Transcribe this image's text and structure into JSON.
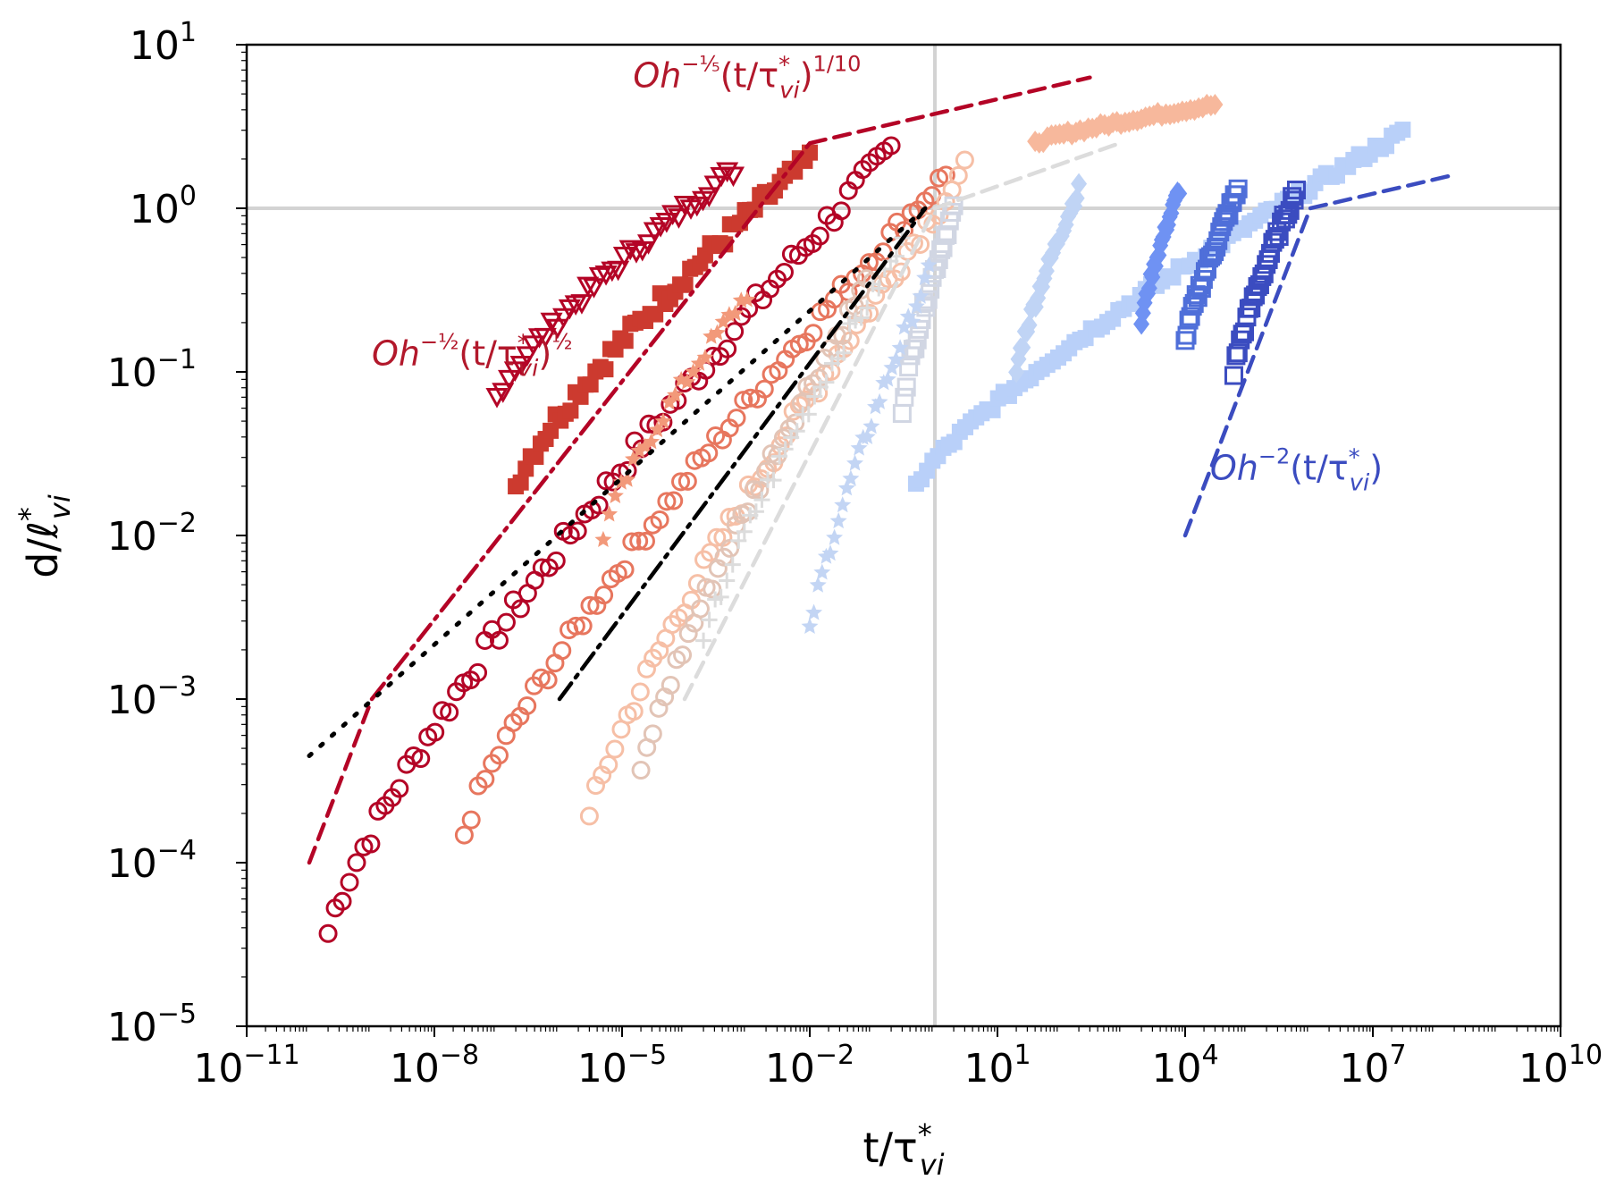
{
  "chart_data": {
    "type": "scatter",
    "xscale": "log",
    "yscale": "log",
    "xlim": [
      1e-11,
      10000000000.0
    ],
    "ylim": [
      1e-05,
      10
    ],
    "x_ticks": [
      {
        "base": "10",
        "exp": "−11",
        "value": 1e-11
      },
      {
        "base": "10",
        "exp": "−8",
        "value": 1e-08
      },
      {
        "base": "10",
        "exp": "−5",
        "value": 1e-05
      },
      {
        "base": "10",
        "exp": "−2",
        "value": 0.01
      },
      {
        "base": "10",
        "exp": "1",
        "value": 10
      },
      {
        "base": "10",
        "exp": "4",
        "value": 10000.0
      },
      {
        "base": "10",
        "exp": "7",
        "value": 10000000.0
      },
      {
        "base": "10",
        "exp": "10",
        "value": 10000000000.0
      }
    ],
    "y_ticks": [
      {
        "base": "10",
        "exp": "−5",
        "value": 1e-05
      },
      {
        "base": "10",
        "exp": "−4",
        "value": 0.0001
      },
      {
        "base": "10",
        "exp": "−3",
        "value": 0.001
      },
      {
        "base": "10",
        "exp": "−2",
        "value": 0.01
      },
      {
        "base": "10",
        "exp": "−1",
        "value": 0.1
      },
      {
        "base": "10",
        "exp": "0",
        "value": 1
      },
      {
        "base": "10",
        "exp": "1",
        "value": 10
      }
    ],
    "xlabel": {
      "main": "t/τ",
      "sup": "*",
      "sub": "vi"
    },
    "ylabel": {
      "main": "d/ℓ",
      "sup": "*",
      "sub": "vi"
    },
    "reference_lines": [
      {
        "orientation": "horizontal",
        "value": 1,
        "color": "#d3d3d3"
      },
      {
        "orientation": "vertical",
        "value": 1,
        "color": "#d3d3d3"
      }
    ],
    "annotations": [
      {
        "id": "half",
        "parts": {
          "base": "Oh",
          "exp": "−½",
          "paren": "(t/τ",
          "sup": "*",
          "sub": "vi",
          "close": ")",
          "pexp": "½"
        },
        "color": "#b2182b",
        "at": [
          1e-09,
          0.11
        ]
      },
      {
        "id": "fifth",
        "parts": {
          "base": "Oh",
          "exp": "−⅕",
          "paren": "(t/τ",
          "sup": "*",
          "sub": "vi",
          "close": ")",
          "pexp": "1/10"
        },
        "color": "#b2182b",
        "at": [
          1.5e-05,
          5.5
        ]
      },
      {
        "id": "minus2",
        "parts": {
          "base": "Oh",
          "exp": "−2",
          "paren": "(t/τ",
          "sup": "*",
          "sub": "vi",
          "close": ")",
          "pexp": ""
        },
        "color": "#3b4cc0",
        "at": [
          25000.0,
          0.022
        ]
      }
    ],
    "fit_lines": [
      {
        "name": "inertial-red",
        "style": "dashed",
        "color": "#b40426",
        "points": [
          [
            1e-10,
            0.0001
          ],
          [
            1e-09,
            0.001
          ]
        ]
      },
      {
        "name": "Oh-half",
        "style": "dashdot",
        "color": "#b40426",
        "points": [
          [
            1e-09,
            0.001
          ],
          [
            0.01,
            2.5
          ]
        ]
      },
      {
        "name": "Oh-fifth",
        "style": "dashed",
        "color": "#b40426",
        "points": [
          [
            0.01,
            2.5
          ],
          [
            300,
            6.3
          ]
        ]
      },
      {
        "name": "black-dotted",
        "style": "dotted",
        "color": "#000000",
        "points": [
          [
            1e-10,
            0.00045
          ],
          [
            0.7,
            1.0
          ]
        ]
      },
      {
        "name": "black-dashdot",
        "style": "dashdot",
        "color": "#000000",
        "points": [
          [
            1e-06,
            0.001
          ],
          [
            0.7,
            1.0
          ]
        ]
      },
      {
        "name": "gray-dashed",
        "style": "dashed",
        "color": "#dcdcdc",
        "points": [
          [
            0.0001,
            0.001
          ],
          [
            1,
            1
          ],
          [
            900,
            2.5
          ]
        ]
      },
      {
        "name": "Oh-minus-2",
        "style": "dashed",
        "color": "#3b4cc0",
        "points": [
          [
            10000.0,
            0.01
          ],
          [
            1000000.0,
            1
          ],
          [
            200000000.0,
            1.6
          ]
        ]
      }
    ],
    "series": [
      {
        "name": "Oh-1",
        "marker": "o",
        "color": "#b40426",
        "x0": 2e-10,
        "y0": 3.7e-05,
        "x1": 0.2,
        "y1": 2.3,
        "n": 80,
        "jitter": 0.15
      },
      {
        "name": "Oh-2",
        "marker": "v",
        "color": "#b40426",
        "x0": 1e-07,
        "y0": 0.07,
        "x1": 0.0006,
        "y1": 1.7,
        "n": 40,
        "jitter": 0.08
      },
      {
        "name": "Oh-3",
        "marker": "s",
        "color": "#cc3a2f",
        "x0": 2e-07,
        "y0": 0.02,
        "x1": 0.01,
        "y1": 2.0,
        "n": 60,
        "jitter": 0.12
      },
      {
        "name": "Oh-4",
        "marker": "o",
        "color": "#e7765e",
        "x0": 3e-08,
        "y0": 0.00015,
        "x1": 1.5,
        "y1": 1.6,
        "n": 70,
        "jitter": 0.12
      },
      {
        "name": "Oh-5",
        "marker": "*",
        "color": "#f2997a",
        "x0": 5e-06,
        "y0": 0.01,
        "x1": 0.001,
        "y1": 0.3,
        "n": 25,
        "jitter": 0.1
      },
      {
        "name": "Oh-6",
        "marker": "o",
        "color": "#f6bfa6",
        "x0": 3e-06,
        "y0": 0.00018,
        "x1": 3,
        "y1": 1.7,
        "n": 60,
        "jitter": 0.14
      },
      {
        "name": "Oh-7",
        "marker": "d",
        "color": "#f7b89c",
        "x0": 40,
        "y0": 2.5,
        "x1": 30000.0,
        "y1": 4.3,
        "n": 45,
        "jitter": 0.03
      },
      {
        "name": "Oh-8",
        "marker": "o",
        "color": "#e2c4b6",
        "x0": 2e-05,
        "y0": 0.00033,
        "x1": 0.1,
        "y1": 0.4,
        "n": 40,
        "jitter": 0.12
      },
      {
        "name": "Oh-9",
        "marker": "+",
        "color": "#dcdcdc",
        "x0": 0.0002,
        "y0": 0.002,
        "x1": 0.3,
        "y1": 0.6,
        "n": 35,
        "jitter": 0.12
      },
      {
        "name": "Oh-10",
        "marker": "s-open",
        "color": "#d1d6e3",
        "x0": 0.3,
        "y0": 0.06,
        "x1": 2,
        "y1": 1.0,
        "n": 25,
        "jitter": 0.08
      },
      {
        "name": "Oh-11",
        "marker": "*",
        "color": "#c3d5f4",
        "x0": 0.01,
        "y0": 0.0025,
        "x1": 0.8,
        "y1": 0.4,
        "n": 30,
        "jitter": 0.1
      },
      {
        "name": "Oh-12",
        "marker": "s",
        "color": "#b9d0f9",
        "x0": 0.5,
        "y0": 0.02,
        "x1": 30000000.0,
        "y1": 2.9,
        "n": 90,
        "jitter": 0.06
      },
      {
        "name": "Oh-13",
        "marker": "d",
        "color": "#c0d4f5",
        "x0": 20,
        "y0": 0.1,
        "x1": 200,
        "y1": 1.3,
        "n": 30,
        "jitter": 0.08
      },
      {
        "name": "Oh-14",
        "marker": "d",
        "color": "#6f92f3",
        "x0": 2000.0,
        "y0": 0.2,
        "x1": 8000.0,
        "y1": 1.3,
        "n": 25,
        "jitter": 0.06
      },
      {
        "name": "Oh-15",
        "marker": "s-open",
        "color": "#4f6fd9",
        "x0": 10000.0,
        "y0": 0.15,
        "x1": 70000.0,
        "y1": 1.3,
        "n": 30,
        "jitter": 0.07
      },
      {
        "name": "Oh-16",
        "marker": "s-open",
        "color": "#3b4cc0",
        "x0": 60000.0,
        "y0": 0.1,
        "x1": 600000.0,
        "y1": 1.3,
        "n": 30,
        "jitter": 0.07
      }
    ]
  }
}
